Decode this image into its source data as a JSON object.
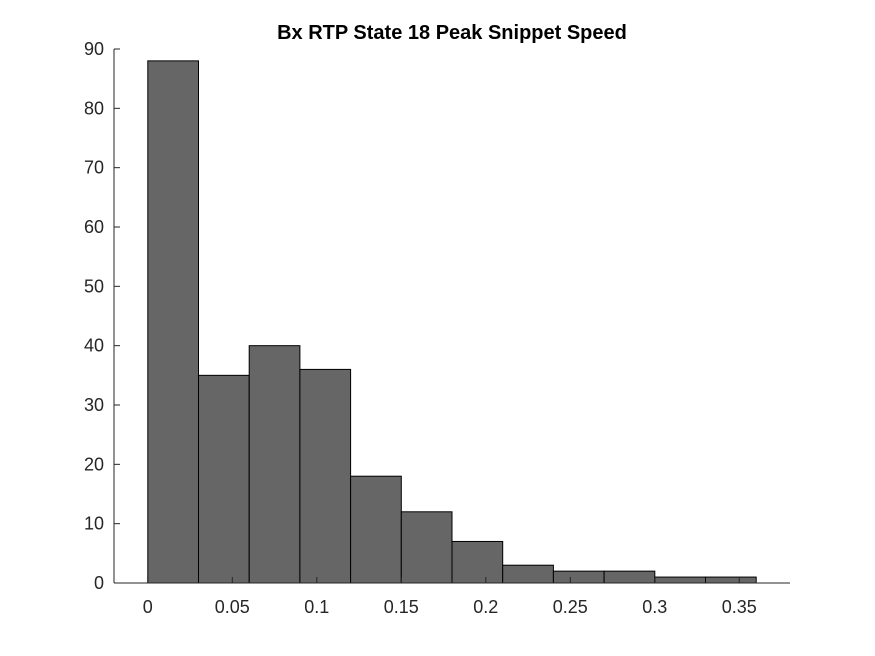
{
  "chart_data": {
    "type": "bar",
    "title": "Bx  RTP State 18 Peak Snippet Speed",
    "xlabel": "",
    "ylabel": "",
    "bin_edges": [
      0,
      0.03,
      0.06,
      0.09,
      0.12,
      0.15,
      0.18,
      0.21,
      0.24,
      0.27,
      0.3,
      0.33,
      0.36
    ],
    "values": [
      88,
      35,
      40,
      36,
      18,
      12,
      7,
      3,
      2,
      2,
      1,
      1
    ],
    "xlim": [
      -0.02,
      0.38
    ],
    "ylim": [
      0,
      90
    ],
    "xticks": [
      0,
      0.05,
      0.1,
      0.15,
      0.2,
      0.25,
      0.3,
      0.35
    ],
    "xtick_labels": [
      "0",
      "0.05",
      "0.1",
      "0.15",
      "0.2",
      "0.25",
      "0.3",
      "0.35"
    ],
    "yticks": [
      0,
      10,
      20,
      30,
      40,
      50,
      60,
      70,
      80,
      90
    ],
    "ytick_labels": [
      "0",
      "10",
      "20",
      "30",
      "40",
      "50",
      "60",
      "70",
      "80",
      "90"
    ],
    "bar_color": "#666666",
    "edge_color": "#000000",
    "grid": false
  }
}
